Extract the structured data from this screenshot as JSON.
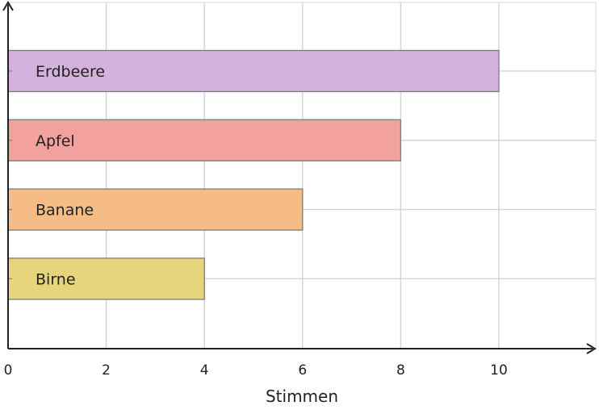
{
  "chart_data": {
    "type": "bar",
    "orientation": "horizontal",
    "categories": [
      "Erdbeere",
      "Apfel",
      "Banane",
      "Birne"
    ],
    "values": [
      10,
      8,
      6,
      4
    ],
    "colors": [
      "#d5b1dd",
      "#f3a19e",
      "#f5bd85",
      "#e6d57c"
    ],
    "xlabel": "Stimmen",
    "ylabel": "",
    "xlim": [
      0,
      12
    ],
    "xticks": [
      0,
      2,
      4,
      6,
      8,
      10
    ],
    "xtick_labels": [
      "0",
      "2",
      "4",
      "6",
      "8",
      "10"
    ],
    "grid": true,
    "labels_inside_bars": true
  }
}
